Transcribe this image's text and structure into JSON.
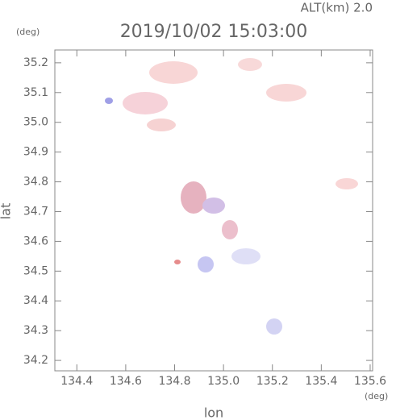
{
  "chart_data": {
    "type": "map",
    "title": "2019/10/02 15:03:00",
    "subtitle": "ALT(km) 2.0",
    "x_label": "lon",
    "y_label": "lat",
    "x_unit": "(deg)",
    "y_unit": "(deg)",
    "xlim": [
      134.31,
      135.61
    ],
    "ylim": [
      34.165,
      35.243
    ],
    "xticks": [
      134.4,
      134.6,
      134.8,
      {
        "value": 135,
        "label": "135.0"
      },
      135.2,
      135.4,
      135.6
    ],
    "yticks": [
      34.2,
      34.3,
      34.4,
      34.5,
      34.6,
      34.7,
      34.8,
      34.9,
      {
        "value": 35,
        "label": "35.0"
      },
      35.1,
      35.2
    ]
  }
}
